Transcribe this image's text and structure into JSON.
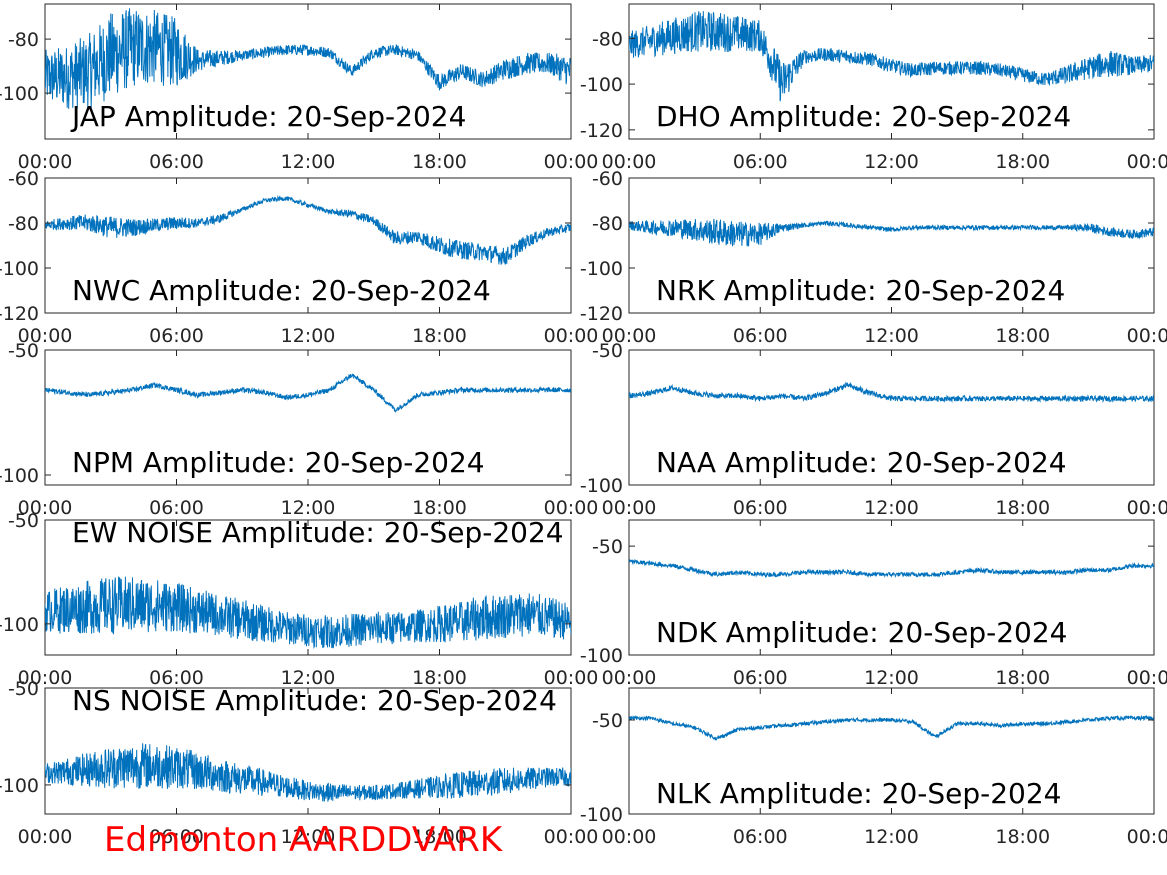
{
  "figure": {
    "footer_label": "Edmonton AARDDVARK",
    "footer_color": "#ff0000",
    "line_color": "#0072bd"
  },
  "chart_data": [
    {
      "type": "line",
      "title": "JAP Amplitude: 20-Sep-2024",
      "x_ticks": [
        "00:00",
        "06:00",
        "12:00",
        "18:00",
        "00:00"
      ],
      "y_ticks": [
        -80,
        -100
      ],
      "y_tick_labels": [
        "-80",
        "-100"
      ],
      "ylim": [
        -117,
        -67
      ],
      "series": [
        {
          "x_hours": [
            0,
            1,
            2,
            3,
            4,
            5,
            6,
            7,
            8,
            9,
            10,
            11,
            12,
            13,
            14,
            15,
            16,
            17,
            18,
            19,
            20,
            21,
            22,
            23,
            24
          ],
          "center": [
            -94,
            -94,
            -92,
            -86,
            -83,
            -83,
            -85,
            -88,
            -87,
            -86,
            -85,
            -84,
            -84,
            -85,
            -92,
            -85,
            -84,
            -86,
            -96,
            -92,
            -95,
            -91,
            -89,
            -89,
            -92
          ],
          "spread": [
            10,
            12,
            14,
            16,
            15,
            14,
            13,
            4,
            3,
            2,
            2,
            2,
            2,
            2,
            2,
            2,
            2,
            2,
            3,
            3,
            3,
            4,
            4,
            4,
            6
          ]
        }
      ]
    },
    {
      "type": "line",
      "title": "DHO Amplitude: 20-Sep-2024",
      "x_ticks": [
        "00:00",
        "06:00",
        "12:00",
        "18:00",
        "00:00"
      ],
      "y_ticks": [
        -80,
        -100,
        -120
      ],
      "y_tick_labels": [
        "-80",
        "-100",
        "-120"
      ],
      "ylim": [
        -124,
        -65
      ],
      "series": [
        {
          "x_hours": [
            0,
            1,
            2,
            3,
            4,
            5,
            6,
            7,
            8,
            9,
            10,
            11,
            12,
            13,
            14,
            15,
            16,
            17,
            18,
            19,
            20,
            21,
            22,
            23,
            24
          ],
          "center": [
            -83,
            -81,
            -79,
            -77,
            -77,
            -78,
            -79,
            -100,
            -88,
            -87,
            -88,
            -89,
            -92,
            -94,
            -93,
            -93,
            -93,
            -94,
            -96,
            -98,
            -96,
            -93,
            -91,
            -92,
            -91
          ],
          "spread": [
            6,
            7,
            8,
            9,
            9,
            8,
            7,
            10,
            3,
            3,
            3,
            3,
            3,
            3,
            3,
            3,
            3,
            3,
            3,
            3,
            4,
            5,
            6,
            4,
            4
          ]
        }
      ]
    },
    {
      "type": "line",
      "title": "NWC Amplitude: 20-Sep-2024",
      "x_ticks": [
        "00:00",
        "06:00",
        "12:00",
        "18:00",
        "00:00"
      ],
      "y_ticks": [
        -60,
        -80,
        -100,
        -120
      ],
      "y_tick_labels": [
        "-60",
        "-80",
        "-100",
        "-120"
      ],
      "ylim": [
        -120,
        -60
      ],
      "series": [
        {
          "x_hours": [
            0,
            1,
            2,
            3,
            4,
            5,
            6,
            7,
            8,
            9,
            10,
            11,
            12,
            13,
            14,
            15,
            16,
            17,
            18,
            19,
            20,
            21,
            22,
            23,
            24
          ],
          "center": [
            -81,
            -80,
            -80,
            -82,
            -82,
            -81,
            -80,
            -80,
            -78,
            -74,
            -70,
            -69,
            -72,
            -75,
            -76,
            -79,
            -87,
            -86,
            -90,
            -92,
            -93,
            -95,
            -88,
            -84,
            -82
          ],
          "spread": [
            2,
            3,
            4,
            5,
            4,
            3,
            3,
            2,
            2,
            1,
            1,
            1,
            1,
            1,
            2,
            2,
            3,
            3,
            4,
            4,
            4,
            4,
            3,
            2,
            2
          ]
        }
      ]
    },
    {
      "type": "line",
      "title": "NRK Amplitude: 20-Sep-2024",
      "x_ticks": [
        "00:00",
        "06:00",
        "12:00",
        "18:00",
        "00:00"
      ],
      "y_ticks": [
        -60,
        -80,
        -100,
        -120
      ],
      "y_tick_labels": [
        "-60",
        "-80",
        "-100",
        "-120"
      ],
      "ylim": [
        -120,
        -60
      ],
      "series": [
        {
          "x_hours": [
            0,
            1,
            2,
            3,
            4,
            5,
            6,
            7,
            8,
            9,
            10,
            11,
            12,
            13,
            14,
            15,
            16,
            17,
            18,
            19,
            20,
            21,
            22,
            23,
            24
          ],
          "center": [
            -81,
            -82,
            -82,
            -83,
            -84,
            -85,
            -85,
            -82,
            -81,
            -80,
            -81,
            -82,
            -83,
            -82,
            -82,
            -82,
            -82,
            -82,
            -82,
            -82,
            -82,
            -82,
            -84,
            -85,
            -84
          ],
          "spread": [
            2,
            3,
            4,
            5,
            6,
            6,
            5,
            2,
            1,
            1,
            1,
            1,
            1,
            1,
            1,
            1,
            1,
            1,
            1,
            1,
            1,
            2,
            2,
            2,
            2
          ]
        }
      ]
    },
    {
      "type": "line",
      "title": "NPM Amplitude: 20-Sep-2024",
      "x_ticks": [
        "00:00",
        "06:00",
        "12:00",
        "18:00",
        "00:00"
      ],
      "y_ticks": [
        -50,
        -100
      ],
      "y_tick_labels": [
        "-50",
        "-100"
      ],
      "ylim": [
        -104,
        -50
      ],
      "series": [
        {
          "x_hours": [
            0,
            1,
            2,
            3,
            4,
            5,
            6,
            7,
            8,
            9,
            10,
            11,
            12,
            13,
            14,
            15,
            16,
            17,
            18,
            19,
            20,
            21,
            22,
            23,
            24
          ],
          "center": [
            -66,
            -67,
            -68,
            -67,
            -66,
            -64,
            -66,
            -68,
            -67,
            -66,
            -67,
            -69,
            -68,
            -66,
            -60,
            -66,
            -74,
            -68,
            -67,
            -66,
            -66,
            -66,
            -66,
            -66,
            -66
          ],
          "spread": [
            1,
            1,
            1,
            1,
            1,
            1,
            1,
            1,
            1,
            1,
            1,
            1,
            1,
            1,
            1,
            1,
            1,
            1,
            1,
            1,
            1,
            1,
            1,
            1,
            1
          ]
        }
      ]
    },
    {
      "type": "line",
      "title": "NAA Amplitude: 20-Sep-2024",
      "x_ticks": [
        "00:00",
        "06:00",
        "12:00",
        "18:00",
        "00:00"
      ],
      "y_ticks": [
        -50,
        -100
      ],
      "y_tick_labels": [
        "-50",
        "-100"
      ],
      "ylim": [
        -100,
        -50
      ],
      "series": [
        {
          "x_hours": [
            0,
            1,
            2,
            3,
            4,
            5,
            6,
            7,
            8,
            9,
            10,
            11,
            12,
            13,
            14,
            15,
            16,
            17,
            18,
            19,
            20,
            21,
            22,
            23,
            24
          ],
          "center": [
            -67,
            -66,
            -64,
            -66,
            -67,
            -67,
            -68,
            -67,
            -68,
            -66,
            -63,
            -66,
            -68,
            -68,
            -68,
            -68,
            -68,
            -68,
            -68,
            -68,
            -68,
            -68,
            -68,
            -68,
            -68
          ],
          "spread": [
            1,
            1,
            1,
            1,
            1,
            1,
            1,
            1,
            1,
            1,
            1,
            1,
            1,
            1,
            1,
            1,
            1,
            1,
            1,
            1,
            1,
            1,
            1,
            1,
            1
          ]
        }
      ]
    },
    {
      "type": "line",
      "title": "EW NOISE Amplitude: 20-Sep-2024",
      "x_ticks": [
        "00:00",
        "06:00",
        "12:00",
        "18:00",
        "00:00"
      ],
      "y_ticks": [
        -50,
        -100
      ],
      "y_tick_labels": [
        "-50",
        "-100"
      ],
      "ylim": [
        -115,
        -50
      ],
      "series": [
        {
          "x_hours": [
            0,
            1,
            2,
            3,
            4,
            5,
            6,
            7,
            8,
            9,
            10,
            11,
            12,
            13,
            14,
            15,
            16,
            17,
            18,
            19,
            20,
            21,
            22,
            23,
            24
          ],
          "center": [
            -94,
            -93,
            -92,
            -91,
            -91,
            -91,
            -92,
            -94,
            -96,
            -98,
            -100,
            -102,
            -103,
            -104,
            -103,
            -102,
            -102,
            -101,
            -100,
            -99,
            -97,
            -96,
            -95,
            -97,
            -99
          ],
          "spread": [
            10,
            12,
            13,
            14,
            14,
            13,
            12,
            11,
            10,
            10,
            9,
            8,
            8,
            8,
            8,
            8,
            8,
            8,
            9,
            10,
            11,
            11,
            11,
            10,
            9
          ]
        }
      ]
    },
    {
      "type": "line",
      "title": "NDK Amplitude: 20-Sep-2024",
      "x_ticks": [
        "00:00",
        "06:00",
        "12:00",
        "18:00",
        "00:00"
      ],
      "y_ticks": [
        -50,
        -100
      ],
      "y_tick_labels": [
        "-50",
        "-100"
      ],
      "ylim": [
        -100,
        -38
      ],
      "series": [
        {
          "x_hours": [
            0,
            1,
            2,
            3,
            4,
            5,
            6,
            7,
            8,
            9,
            10,
            11,
            12,
            13,
            14,
            15,
            16,
            17,
            18,
            19,
            20,
            21,
            22,
            23,
            24
          ],
          "center": [
            -57,
            -58,
            -59,
            -61,
            -63,
            -62,
            -63,
            -63,
            -62,
            -62,
            -62,
            -63,
            -63,
            -63,
            -63,
            -62,
            -61,
            -62,
            -62,
            -62,
            -62,
            -61,
            -61,
            -59,
            -59
          ],
          "spread": [
            1,
            1,
            1,
            1,
            1,
            1,
            1,
            1,
            1,
            1,
            1,
            1,
            1,
            1,
            1,
            1,
            1,
            1,
            1,
            1,
            1,
            1,
            1,
            1,
            1
          ]
        }
      ]
    },
    {
      "type": "line",
      "title": "NS NOISE Amplitude: 20-Sep-2024",
      "x_ticks": [
        "00:00",
        "06:00",
        "12:00",
        "18:00",
        "00:00"
      ],
      "y_ticks": [
        -50,
        -100
      ],
      "y_tick_labels": [
        "-50",
        "-100"
      ],
      "ylim": [
        -115,
        -50
      ],
      "series": [
        {
          "x_hours": [
            0,
            1,
            2,
            3,
            4,
            5,
            6,
            7,
            8,
            9,
            10,
            11,
            12,
            13,
            14,
            15,
            16,
            17,
            18,
            19,
            20,
            21,
            22,
            23,
            24
          ],
          "center": [
            -94,
            -93,
            -92,
            -91,
            -90,
            -90,
            -91,
            -93,
            -95,
            -97,
            -99,
            -101,
            -103,
            -104,
            -104,
            -104,
            -103,
            -102,
            -101,
            -100,
            -99,
            -98,
            -97,
            -96,
            -96
          ],
          "spread": [
            5,
            7,
            9,
            11,
            12,
            12,
            11,
            10,
            9,
            8,
            7,
            6,
            5,
            5,
            4,
            4,
            4,
            5,
            6,
            7,
            7,
            7,
            6,
            5,
            5
          ]
        }
      ]
    },
    {
      "type": "line",
      "title": "NLK Amplitude: 20-Sep-2024",
      "x_ticks": [
        "00:00",
        "06:00",
        "12:00",
        "18:00",
        "00:00"
      ],
      "y_ticks": [
        -50,
        -100
      ],
      "y_tick_labels": [
        "-50",
        "-100"
      ],
      "ylim": [
        -100,
        -33
      ],
      "series": [
        {
          "x_hours": [
            0,
            1,
            2,
            3,
            4,
            5,
            6,
            7,
            8,
            9,
            10,
            11,
            12,
            13,
            14,
            15,
            16,
            17,
            18,
            19,
            20,
            21,
            22,
            23,
            24
          ],
          "center": [
            -49,
            -49,
            -52,
            -54,
            -60,
            -55,
            -54,
            -53,
            -52,
            -51,
            -50,
            -50,
            -50,
            -51,
            -59,
            -52,
            -52,
            -53,
            -52,
            -52,
            -51,
            -50,
            -49,
            -49,
            -49
          ],
          "spread": [
            1,
            1,
            1,
            1,
            1,
            1,
            1,
            1,
            1,
            1,
            1,
            1,
            1,
            1,
            1,
            1,
            1,
            1,
            1,
            1,
            1,
            1,
            1,
            1,
            1
          ]
        }
      ]
    }
  ]
}
